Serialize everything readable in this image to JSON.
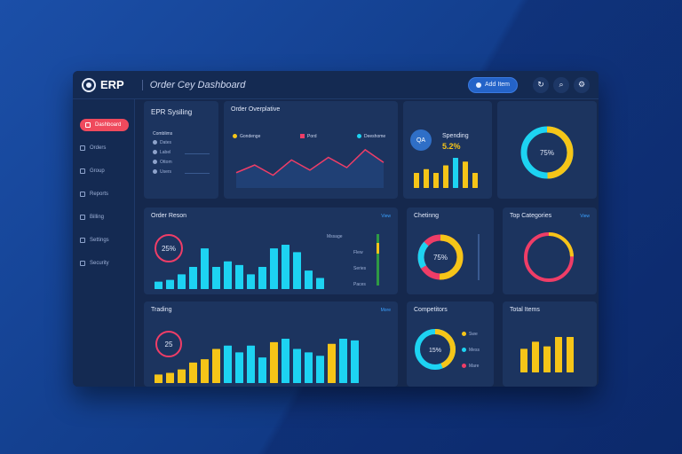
{
  "topbar": {
    "logo_text": "ERP",
    "app_title": "Order Cey Dashboard",
    "pill_label": "Add Item"
  },
  "sidebar": {
    "items": [
      {
        "label": "Dashboard"
      },
      {
        "label": "Orders"
      },
      {
        "label": "Group"
      },
      {
        "label": "Reports"
      },
      {
        "label": "Billing"
      },
      {
        "label": "Settings"
      },
      {
        "label": "Security"
      }
    ]
  },
  "cards": {
    "erp_summary": {
      "title": "EPR Sysiling",
      "sub": "Comblims",
      "rows": [
        "Dates",
        "Label",
        "Ottom",
        "Users"
      ]
    },
    "order_overview": {
      "title": "Order Overplative",
      "legend": [
        "Gondenge",
        "Pord",
        "Deeshome"
      ]
    },
    "spending": {
      "title": "Spending",
      "badge": "5.2%",
      "ring_text": "QA"
    },
    "order_bars": {
      "title": "Order Reson",
      "link": "View",
      "ring_value": "25%",
      "labels": [
        "Mssage",
        "Flew",
        "Series",
        "Paces"
      ]
    },
    "churning": {
      "title": "Chetinng",
      "ring_value": "75%"
    },
    "top_categories": {
      "title": "Top Categories",
      "link": "View"
    },
    "trading": {
      "title": "Trading",
      "link": "More",
      "ring_value": "25"
    },
    "competitors": {
      "title": "Competitors",
      "ring_value": "15%",
      "legend": [
        "Swe",
        "Mess",
        "Mare"
      ]
    },
    "total_items": {
      "title": "Total Items"
    },
    "kpi_ring": {
      "value": "75%"
    }
  },
  "chart_data": [
    {
      "type": "line",
      "values": [
        12,
        18,
        10,
        22,
        14,
        24,
        16,
        30,
        20
      ]
    },
    {
      "type": "bar",
      "values": [
        4,
        5,
        8,
        12,
        22,
        12,
        15,
        13,
        8,
        12,
        22,
        24,
        20,
        10,
        6
      ]
    },
    {
      "type": "bar",
      "values": [
        5,
        6,
        8,
        12,
        14,
        20,
        22,
        18,
        22,
        15,
        24,
        26,
        20,
        18,
        16,
        23,
        26,
        25
      ]
    },
    {
      "type": "bar",
      "values": [
        4,
        5,
        4,
        6,
        8,
        7,
        4
      ]
    },
    {
      "type": "bar",
      "values": [
        20,
        26,
        22,
        30,
        30
      ]
    }
  ]
}
